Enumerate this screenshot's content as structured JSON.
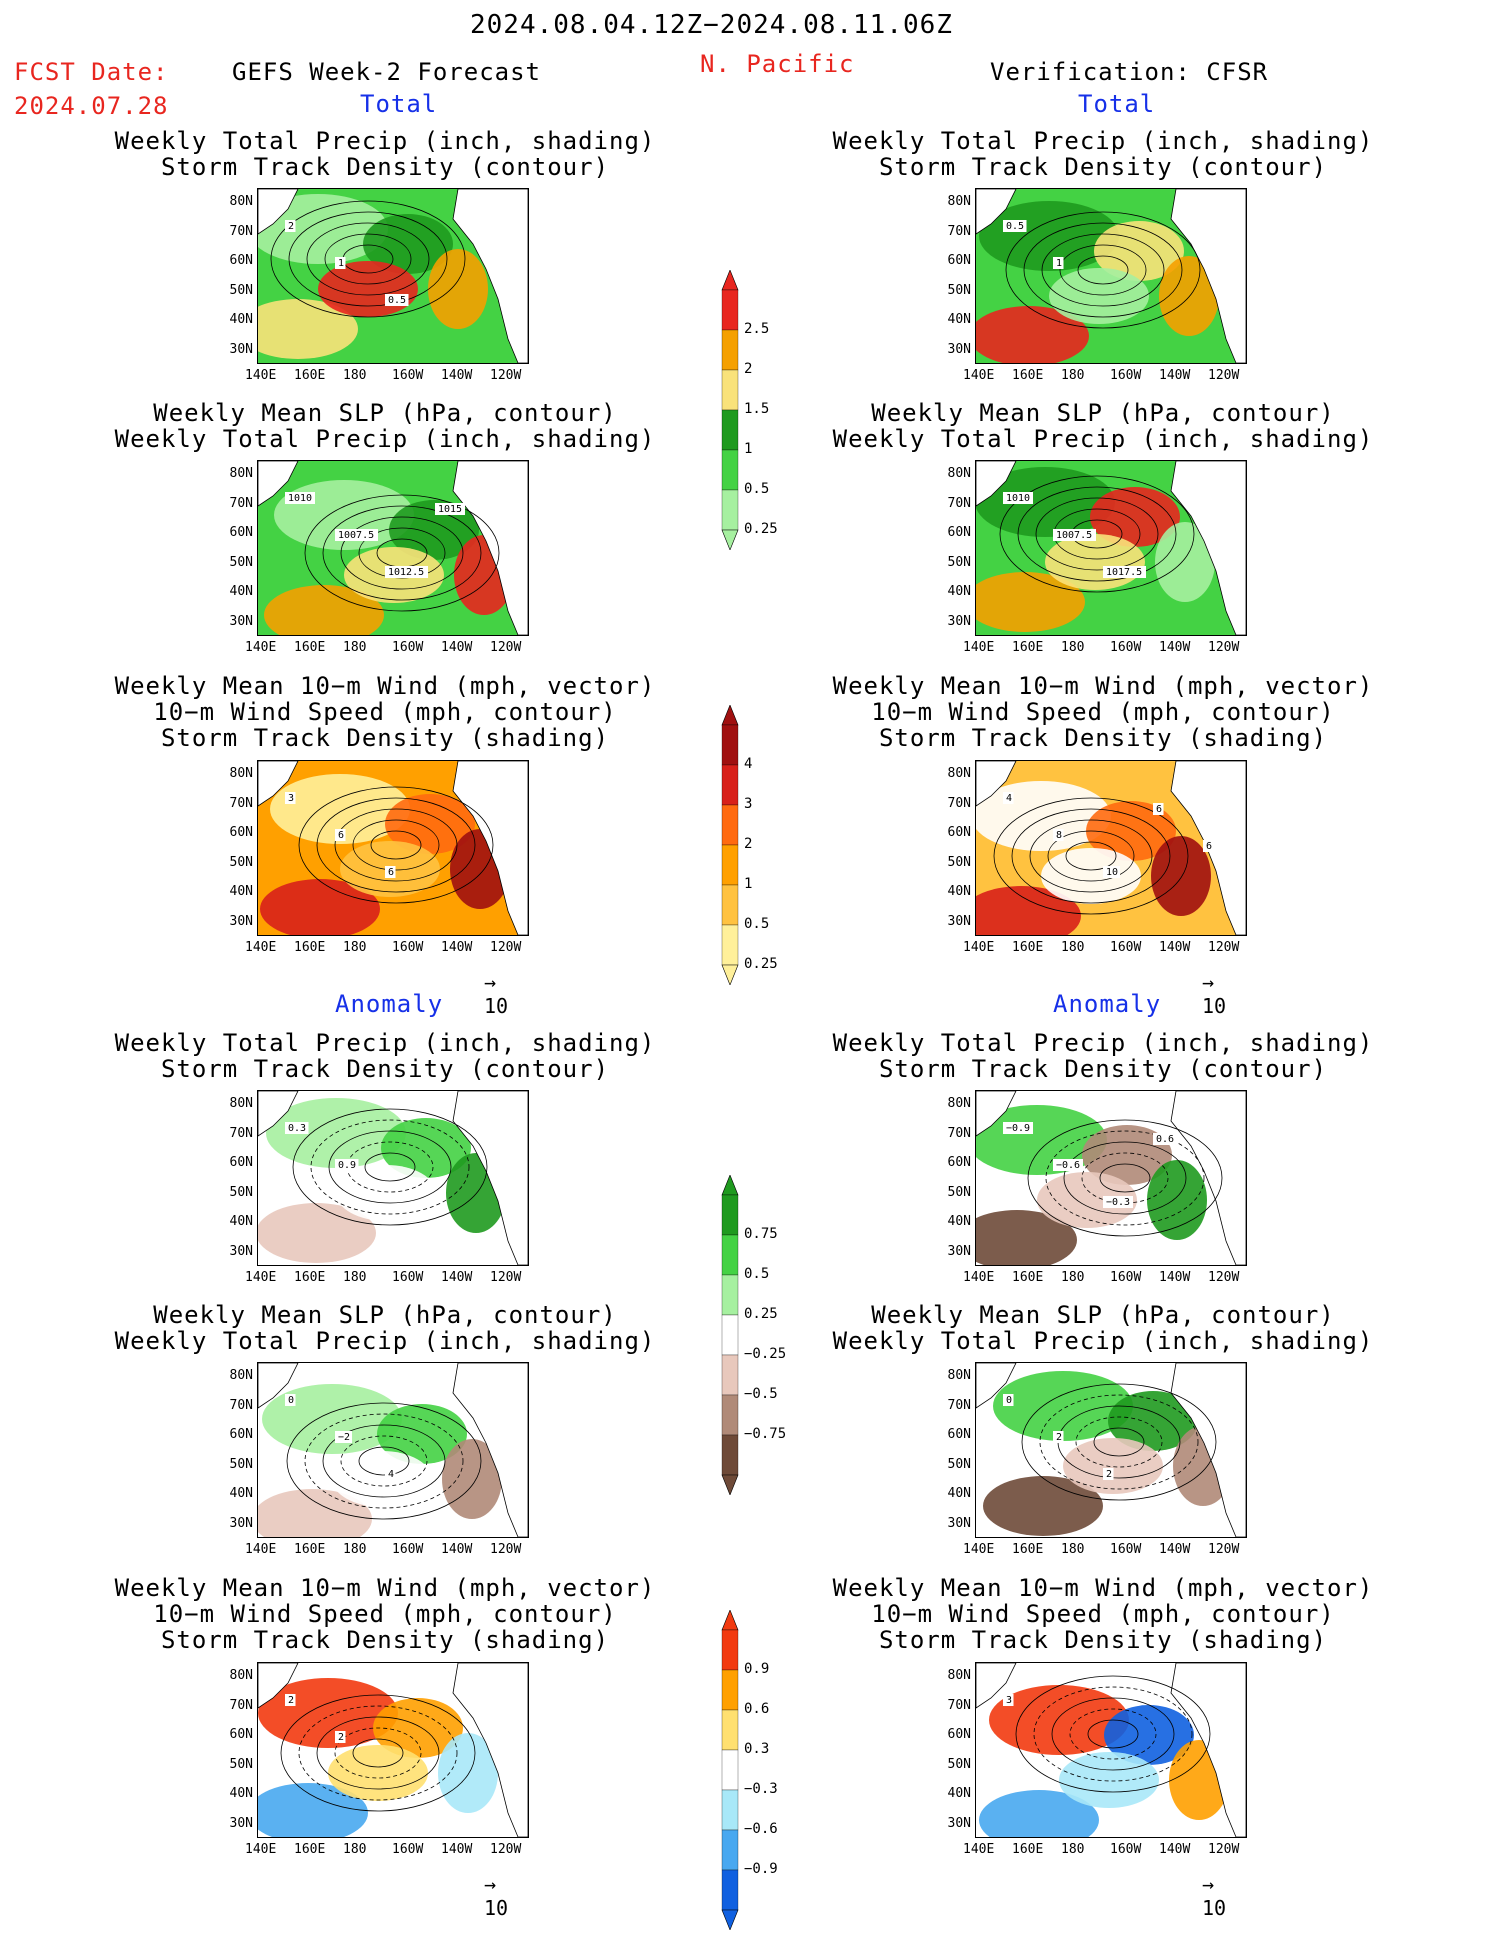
{
  "header": {
    "date_range": "2024.08.04.12Z−2024.08.11.06Z",
    "fcst_label": "FCST Date:",
    "fcst_date": "2024.07.28",
    "left_title": "GEFS Week-2 Forecast",
    "region": "N. Pacific",
    "right_title": "Verification: CFSR"
  },
  "sections": {
    "total": "Total",
    "anomaly": "Anomaly"
  },
  "panel_titles": {
    "precip_storm": "Weekly Total Precip (inch, shading)\nStorm Track Density (contour)",
    "slp_precip": "Weekly Mean SLP (hPa, contour)\nWeekly Total Precip (inch, shading)",
    "wind_storm": "Weekly Mean 10−m Wind (mph, vector)\n10−m Wind Speed (mph, contour)\nStorm Track Density (shading)"
  },
  "axes": {
    "lat_ticks": [
      "80N",
      "70N",
      "60N",
      "50N",
      "40N",
      "30N"
    ],
    "lon_ticks": [
      "140E",
      "160E",
      "180",
      "160W",
      "140W",
      "120W"
    ]
  },
  "vector_ref": "10",
  "colorbars": {
    "precip_total": {
      "labels": [
        "2.5",
        "2",
        "1.5",
        "1",
        "0.5",
        "0.25"
      ],
      "colors": [
        "#e8261f",
        "#f5a000",
        "#f9e27a",
        "#1f9a1f",
        "#44d244",
        "#a6f0a0"
      ]
    },
    "storm_total": {
      "labels": [
        "4",
        "3",
        "2",
        "1",
        "0.5",
        "0.25"
      ],
      "colors": [
        "#a01010",
        "#d8201a",
        "#ff6a10",
        "#ffa000",
        "#ffc240",
        "#fff09a"
      ]
    },
    "precip_anom": {
      "labels": [
        "0.75",
        "0.5",
        "0.25",
        "−0.25",
        "−0.5",
        "−0.75"
      ],
      "colors": [
        "#1f9a1f",
        "#44d244",
        "#a6f0a0",
        "#ffffff",
        "#e8c8bc",
        "#b08a78",
        "#6e4a38"
      ]
    },
    "storm_anom": {
      "labels": [
        "0.9",
        "0.6",
        "0.3",
        "−0.3",
        "−0.6",
        "−0.9"
      ],
      "colors": [
        "#f23a10",
        "#ffa000",
        "#ffe070",
        "#ffffff",
        "#a8e8f8",
        "#48a8f0",
        "#1060e0"
      ]
    }
  },
  "contour_labels": {
    "p1": [
      "2",
      "1",
      "0.5"
    ],
    "p2": [
      "0.5",
      "1"
    ],
    "p3": [
      "1010",
      "1007.5",
      "1012.5",
      "1015"
    ],
    "p4": [
      "1010",
      "1007.5",
      "1017.5"
    ],
    "p5": [
      "3",
      "6",
      "6"
    ],
    "p6": [
      "4",
      "8",
      "10",
      "6",
      "6"
    ],
    "p7": [
      "0.3",
      "0.9"
    ],
    "p8": [
      "−0.9",
      "−0.6",
      "−0.3",
      "0.6"
    ],
    "p9": [
      "0",
      "−2",
      "4"
    ],
    "p10": [
      "0",
      "2",
      "2"
    ],
    "p11": [
      "2",
      "2"
    ],
    "p12": [
      "3"
    ]
  }
}
